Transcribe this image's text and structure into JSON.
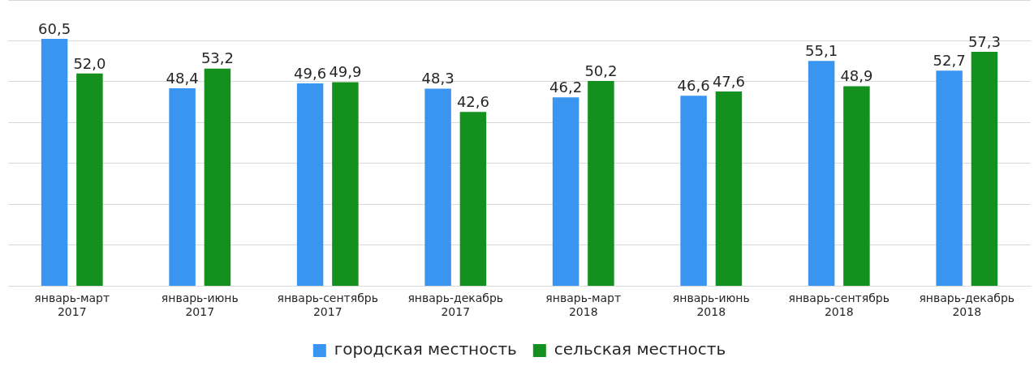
{
  "chart_data": {
    "type": "bar",
    "categories": [
      "январь-март 2017",
      "январь-июнь 2017",
      "январь-сентябрь 2017",
      "январь-декабрь 2017",
      "январь-март 2018",
      "январь-июнь 2018",
      "январь-сентябрь 2018",
      "январь-декабрь 2018"
    ],
    "series": [
      {
        "name": "городская местность",
        "color": "#3a95f0",
        "values": [
          60.5,
          48.4,
          49.6,
          48.3,
          46.2,
          46.6,
          55.1,
          52.7
        ],
        "value_labels": [
          "60,5",
          "48,4",
          "49,6",
          "48,3",
          "46,2",
          "46,6",
          "55,1",
          "52,7"
        ]
      },
      {
        "name": "сельская местность",
        "color": "#14901e",
        "values": [
          52.0,
          53.2,
          49.9,
          42.6,
          50.2,
          47.6,
          48.9,
          57.3
        ],
        "value_labels": [
          "52,0",
          "53,2",
          "49,9",
          "42,6",
          "50,2",
          "47,6",
          "48,9",
          "57,3"
        ]
      }
    ],
    "tick_labels": "x",
    "grid": "y",
    "legend": "bottom"
  }
}
